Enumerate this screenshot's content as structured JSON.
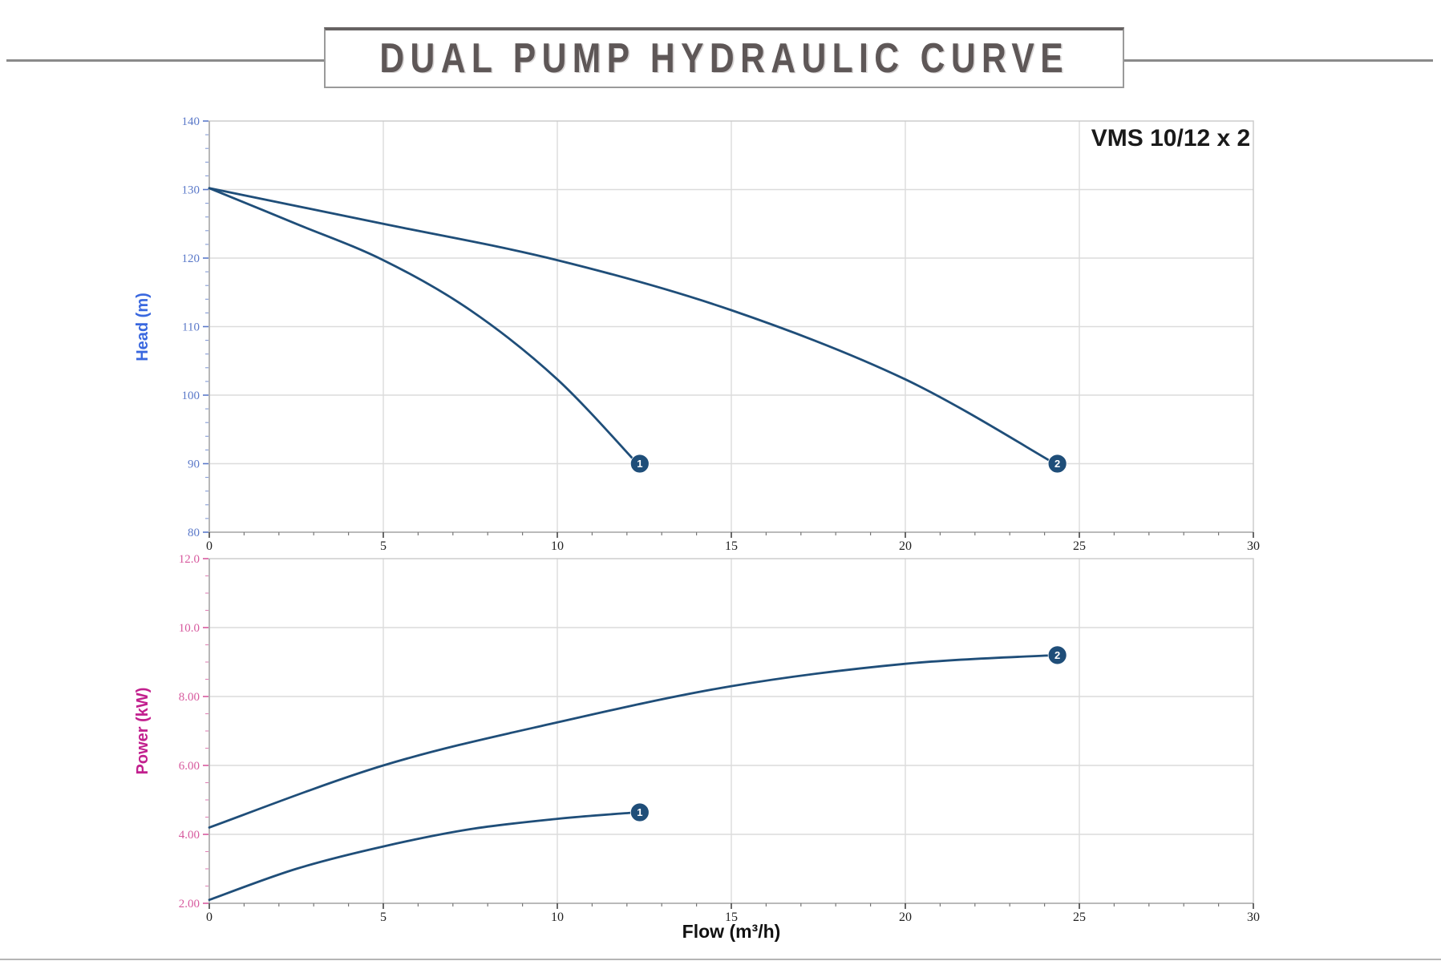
{
  "header": {
    "title": "DUAL PUMP HYDRAULIC CURVE"
  },
  "colors": {
    "curve": "#1F4E79",
    "grid": "#dcdcdc",
    "plot_border": "#c9c9c9",
    "axis_line": "#ababab",
    "head_tick": "#5b79c9",
    "head_title": "#3a68df",
    "power_tick": "#d75a9e",
    "power_title": "#c2208e",
    "x_tick": "#222222",
    "marker_fill": "#1F4E79",
    "marker_text": "#ffffff",
    "annotation": "#1a1a1a",
    "x_axis_label": "#111111"
  },
  "chart_data": [
    {
      "type": "line",
      "id": "head",
      "ylabel": "Head (m)",
      "xlabel": "",
      "annotation": "VMS 10/12 x 2",
      "xlim": [
        0,
        30
      ],
      "ylim": [
        80,
        140
      ],
      "xticks": [
        0,
        5,
        10,
        15,
        20,
        25,
        30
      ],
      "xtick_labels": [
        "0",
        "5",
        "10",
        "15",
        "20",
        "25",
        "30"
      ],
      "x_minor_step": 1,
      "yticks": [
        80,
        90,
        100,
        110,
        120,
        130,
        140
      ],
      "ytick_labels": [
        "80",
        "90",
        "100",
        "110",
        "120",
        "130",
        "140"
      ],
      "y_minor_step": 2,
      "grid": true,
      "series": [
        {
          "name": "1",
          "marker_label": "1",
          "points": [
            [
              0,
              130.2
            ],
            [
              2.5,
              125.0
            ],
            [
              5,
              119.7
            ],
            [
              7.5,
              112.4
            ],
            [
              10,
              102.3
            ],
            [
              12.3,
              90
            ]
          ]
        },
        {
          "name": "2",
          "marker_label": "2",
          "points": [
            [
              0,
              130.2
            ],
            [
              5,
              125.0
            ],
            [
              10,
              119.7
            ],
            [
              15,
              112.4
            ],
            [
              20,
              102.3
            ],
            [
              24.3,
              90
            ]
          ]
        }
      ]
    },
    {
      "type": "line",
      "id": "power",
      "ylabel": "Power (kW)",
      "xlabel": "Flow (m³/h)",
      "annotation": "",
      "xlim": [
        0,
        30
      ],
      "ylim": [
        2,
        12
      ],
      "xticks": [
        0,
        5,
        10,
        15,
        20,
        25,
        30
      ],
      "xtick_labels": [
        "0",
        "5",
        "10",
        "15",
        "20",
        "25",
        "30"
      ],
      "x_minor_step": 1,
      "yticks": [
        2,
        4,
        6,
        8,
        10,
        12
      ],
      "ytick_labels": [
        "2.00",
        "4.00",
        "6.00",
        "8.00",
        "10.0",
        "12.0"
      ],
      "y_minor_step": 0.5,
      "grid": true,
      "series": [
        {
          "name": "1",
          "marker_label": "1",
          "points": [
            [
              0,
              2.1
            ],
            [
              2.5,
              3.0
            ],
            [
              5,
              3.65
            ],
            [
              7.5,
              4.15
            ],
            [
              10,
              4.45
            ],
            [
              12.3,
              4.64
            ]
          ]
        },
        {
          "name": "2",
          "marker_label": "2",
          "points": [
            [
              0,
              4.2
            ],
            [
              5,
              6.0
            ],
            [
              10,
              7.25
            ],
            [
              15,
              8.3
            ],
            [
              20,
              8.95
            ],
            [
              24.3,
              9.2
            ]
          ]
        }
      ]
    }
  ]
}
